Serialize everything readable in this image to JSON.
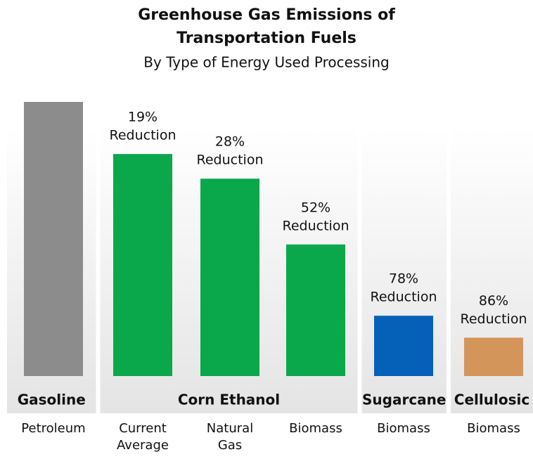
{
  "chart_data": {
    "type": "bar",
    "title": [
      "Greenhouse Gas Emissions of",
      "Transportation Fuels"
    ],
    "subtitle": "By Type of Energy Used Processing",
    "categories": [
      [
        "Petroleum"
      ],
      [
        "Current",
        "Average"
      ],
      [
        "Natural",
        "Gas"
      ],
      [
        "Biomass"
      ],
      [
        "Biomass"
      ],
      [
        "Biomass"
      ]
    ],
    "groups": [
      {
        "name": "Gasoline",
        "span": 1
      },
      {
        "name": "Corn Ethanol",
        "span": 3
      },
      {
        "name": "Sugarcane",
        "span": 1
      },
      {
        "name": "Cellulosic",
        "span": 1
      }
    ],
    "values": [
      100,
      81,
      72,
      48,
      22,
      14
    ],
    "colors": [
      "#8c8c8c",
      "#0aa84a",
      "#0aa84a",
      "#0aa84a",
      "#0560b8",
      "#d4955a"
    ],
    "reductions": [
      null,
      {
        "value": 19,
        "label": "19%"
      },
      {
        "value": 28,
        "label": "28%"
      },
      {
        "value": 52,
        "label": "52%"
      },
      {
        "value": 78,
        "label": "78%"
      },
      {
        "value": 86,
        "label": "86%"
      }
    ],
    "reduction_text": "Reduction",
    "ylim": [
      0,
      100
    ]
  }
}
